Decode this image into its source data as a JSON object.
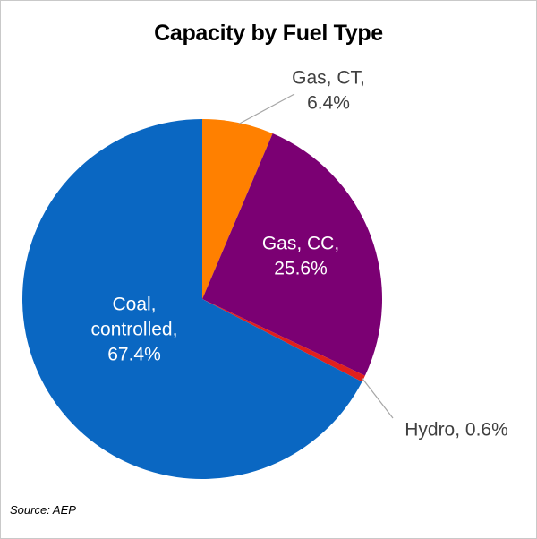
{
  "chart_data": {
    "type": "pie",
    "title": "Capacity by Fuel Type",
    "slices": [
      {
        "label_lines": [
          "Gas, CT,",
          "6.4%"
        ],
        "value": 6.4,
        "color": "#FF8000"
      },
      {
        "label_lines": [
          "Gas, CC,",
          "25.6%"
        ],
        "value": 25.6,
        "color": "#7B0073"
      },
      {
        "label_lines": [
          "Hydro, 0.6%"
        ],
        "value": 0.6,
        "color": "#E0201C"
      },
      {
        "label_lines": [
          "Coal,",
          "controlled,",
          "67.4%"
        ],
        "value": 67.4,
        "color": "#0A67C2"
      }
    ],
    "source": "Source: AEP"
  }
}
